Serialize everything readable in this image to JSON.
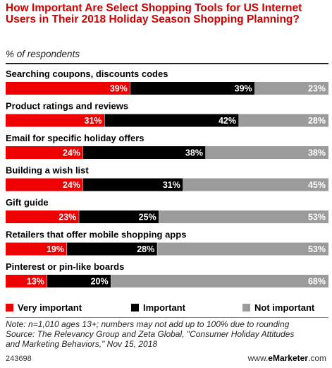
{
  "header": {
    "title": "How Important Are Select Shopping Tools for US Internet Users in Their 2018 Holiday Season Shopping Planning?",
    "subtitle": "% of respondents"
  },
  "colors": {
    "very_important": "#ee0000",
    "important": "#000000",
    "not_important": "#9b9b9b",
    "title": "#cc0000"
  },
  "chart_data": {
    "type": "bar",
    "orientation": "horizontal",
    "stacked": true,
    "value_suffix": "%",
    "categories": [
      "Searching coupons, discounts codes",
      "Product ratings and reviews",
      "Email for specific holiday offers",
      "Building a wish list",
      "Gift guide",
      "Retailers that offer mobile shopping apps",
      "Pinterest or pin-like boards"
    ],
    "series": [
      {
        "name": "Very important",
        "values": [
          39,
          31,
          24,
          24,
          23,
          19,
          13
        ]
      },
      {
        "name": "Important",
        "values": [
          39,
          42,
          38,
          31,
          25,
          28,
          20
        ]
      },
      {
        "name": "Not important",
        "values": [
          23,
          28,
          38,
          45,
          53,
          53,
          68
        ]
      }
    ],
    "legend_position": "bottom"
  },
  "footer": {
    "note_lines": [
      "Note: n=1,010 ages 13+; numbers may not add up to 100% due to rounding",
      "Source: The Relevancy Group and Zeta Global, \"Consumer Holiday Attitudes",
      "and Marketing Behaviors,\" Nov 15, 2018"
    ],
    "chart_id": "243698",
    "brand_prefix": "www.",
    "brand_name": "eMarketer",
    "brand_suffix": ".com"
  }
}
